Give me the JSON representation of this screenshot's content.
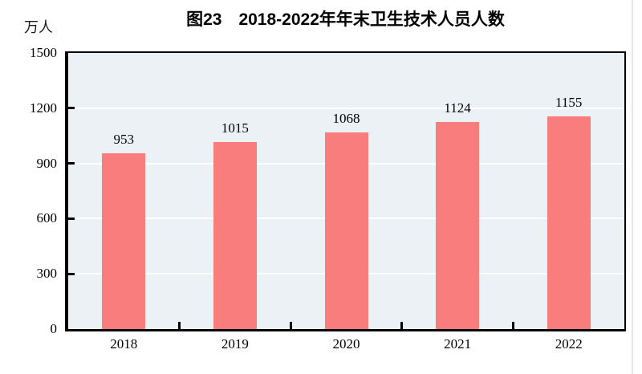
{
  "chart_data": {
    "type": "bar",
    "title": "图23　2018-2022年年末卫生技术人员人数",
    "unit": "万人",
    "categories": [
      "2018",
      "2019",
      "2020",
      "2021",
      "2022"
    ],
    "values": [
      953,
      1015,
      1068,
      1124,
      1155
    ],
    "ylim": [
      0,
      1500
    ],
    "yticks": [
      0,
      300,
      600,
      900,
      1200,
      1500
    ],
    "gridline_values": [
      300,
      600,
      900,
      1200
    ],
    "grid": true,
    "legend": "none",
    "bar_color": "#f97d7d",
    "plot_background": "#ebf1f4",
    "axis_color": "#000000",
    "gridline_color": "#ffffff"
  }
}
